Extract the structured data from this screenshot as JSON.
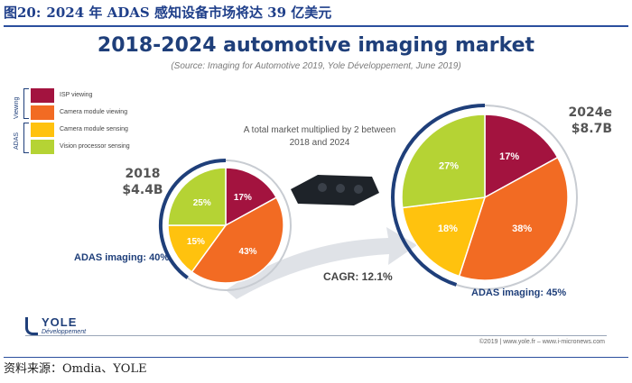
{
  "figure": {
    "number": "图20:",
    "caption": "2024 年 ADAS 感知设备市场将达 39 亿美元",
    "source": "资料来源：Omdia、YOLE"
  },
  "chart_data": {
    "type": "pie",
    "title": "2018-2024 automotive imaging market",
    "subtitle": "(Source: Imaging for Automotive 2019, Yole Développement, June 2019)",
    "categories": [
      "ISP viewing",
      "Camera module viewing",
      "Camera module sensing",
      "Vision processor sensing"
    ],
    "colors": [
      "#a3133f",
      "#f26b23",
      "#ffc20e",
      "#b5d334"
    ],
    "legend_groups": [
      {
        "label": "Viewing",
        "members": [
          "ISP viewing",
          "Camera module viewing"
        ]
      },
      {
        "label": "ADAS",
        "members": [
          "Camera module sensing",
          "Vision processor sensing"
        ]
      }
    ],
    "legend_position": "top-left",
    "note": "A total market multiplied by 2 between 2018 and 2024",
    "cagr": "CAGR: 12.1%",
    "series": [
      {
        "year": "2018",
        "total": "$4.4B",
        "values": [
          17,
          43,
          15,
          25
        ],
        "labels": [
          "17%",
          "43%",
          "15%",
          "25%"
        ],
        "adas_label": "ADAS imaging: 40%"
      },
      {
        "year": "2024e",
        "total": "$8.7B",
        "values": [
          17,
          38,
          18,
          27
        ],
        "labels": [
          "17%",
          "38%",
          "18%",
          "27%"
        ],
        "adas_label": "ADAS imaging: 45%"
      }
    ]
  },
  "footer": {
    "logo_name": "YOLE",
    "logo_sub": "Développement",
    "copyright": "©2019 | www.yole.fr – www.i-micronews.com"
  }
}
